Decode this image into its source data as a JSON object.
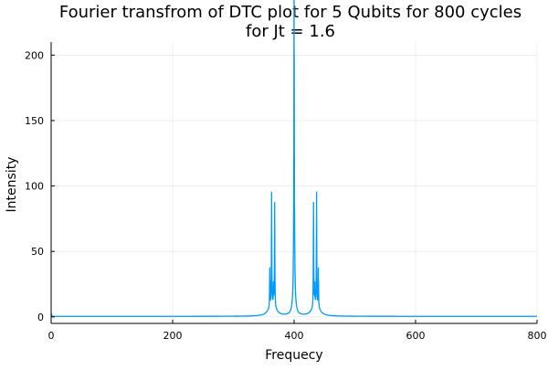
{
  "chart_data": {
    "type": "line",
    "title_lines": [
      "Fourier transfrom of DTC plot for 5 Qubits for 800 cycles",
      "for Jt = 1.6"
    ],
    "xlabel": "Frequecy",
    "ylabel": "Intensity",
    "xlim": [
      0,
      800
    ],
    "ylim": [
      -5,
      210
    ],
    "grid": true,
    "legend": "none",
    "x_ticks": [
      0,
      200,
      400,
      600,
      800
    ],
    "y_ticks": [
      0,
      50,
      100,
      150,
      200
    ],
    "series": [
      {
        "color": "#009AF9",
        "baseline": 0.4,
        "tail_points": [
          [
            0,
            3
          ],
          [
            1,
            0.8
          ],
          [
            2,
            0.6
          ],
          [
            800,
            0.4
          ]
        ],
        "peaks": [
          {
            "x": 360,
            "y": 30
          },
          {
            "x": 363,
            "y": 87
          },
          {
            "x": 366,
            "y": 16
          },
          {
            "x": 368,
            "y": 80
          },
          {
            "x": 400,
            "y": 204
          },
          {
            "x": 432,
            "y": 80
          },
          {
            "x": 434,
            "y": 16
          },
          {
            "x": 437,
            "y": 87
          },
          {
            "x": 440,
            "y": 30
          }
        ],
        "shoulder": {
          "x": 400,
          "y": 68
        }
      }
    ]
  }
}
